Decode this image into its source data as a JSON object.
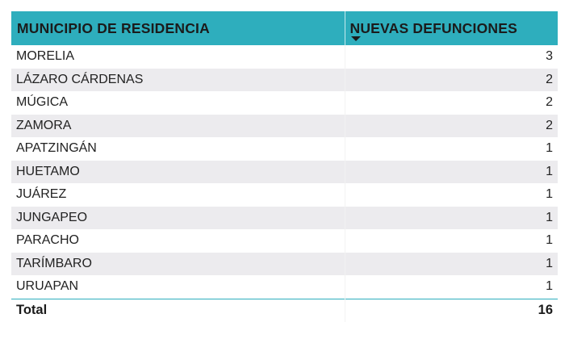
{
  "table": {
    "headers": {
      "municipio": "MUNICIPIO DE RESIDENCIA",
      "defunciones": "NUEVAS DEFUNCIONES"
    },
    "rows": [
      {
        "municipio": "MORELIA",
        "defunciones": "3"
      },
      {
        "municipio": "LÁZARO CÁRDENAS",
        "defunciones": "2"
      },
      {
        "municipio": "MÚGICA",
        "defunciones": "2"
      },
      {
        "municipio": "ZAMORA",
        "defunciones": "2"
      },
      {
        "municipio": "APATZINGÁN",
        "defunciones": "1"
      },
      {
        "municipio": "HUETAMO",
        "defunciones": "1"
      },
      {
        "municipio": "JUÁREZ",
        "defunciones": "1"
      },
      {
        "municipio": "JUNGAPEO",
        "defunciones": "1"
      },
      {
        "municipio": "PARACHO",
        "defunciones": "1"
      },
      {
        "municipio": "TARÍMBARO",
        "defunciones": "1"
      },
      {
        "municipio": "URUAPAN",
        "defunciones": "1"
      }
    ],
    "total": {
      "label": "Total",
      "value": "16"
    },
    "sort_icon": "sort-descending-icon",
    "header_color": "#2eaebd"
  }
}
